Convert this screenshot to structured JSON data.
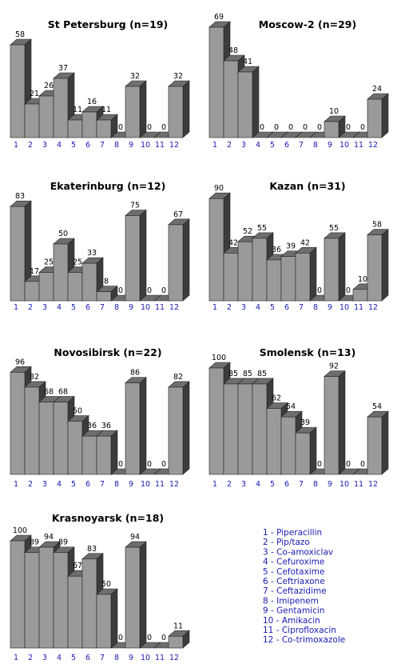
{
  "chart_data": [
    {
      "type": "bar",
      "title": "St Petersburg (n=19)",
      "categories": [
        "1",
        "2",
        "3",
        "4",
        "5",
        "6",
        "7",
        "8",
        "9",
        "10",
        "11",
        "12"
      ],
      "values": [
        58,
        21,
        26,
        37,
        11,
        16,
        11,
        0,
        32,
        0,
        0,
        32
      ]
    },
    {
      "type": "bar",
      "title": "Moscow-2 (n=29)",
      "categories": [
        "1",
        "2",
        "3",
        "4",
        "5",
        "6",
        "7",
        "8",
        "9",
        "10",
        "11",
        "12"
      ],
      "values": [
        69,
        48,
        41,
        0,
        0,
        0,
        0,
        0,
        10,
        0,
        0,
        24
      ]
    },
    {
      "type": "bar",
      "title": "Ekaterinburg (n=12)",
      "categories": [
        "1",
        "2",
        "3",
        "4",
        "5",
        "6",
        "7",
        "8",
        "9",
        "10",
        "11",
        "12"
      ],
      "values": [
        83,
        17,
        25,
        50,
        25,
        33,
        8,
        0,
        75,
        0,
        0,
        67
      ]
    },
    {
      "type": "bar",
      "title": "Kazan (n=31)",
      "categories": [
        "1",
        "2",
        "3",
        "4",
        "5",
        "6",
        "7",
        "8",
        "9",
        "10",
        "11",
        "12"
      ],
      "values": [
        90,
        42,
        52,
        55,
        36,
        39,
        42,
        0,
        55,
        0,
        10,
        58
      ]
    },
    {
      "type": "bar",
      "title": "Novosibirsk (n=22)",
      "categories": [
        "1",
        "2",
        "3",
        "4",
        "5",
        "6",
        "7",
        "8",
        "9",
        "10",
        "11",
        "12"
      ],
      "values": [
        96,
        82,
        68,
        68,
        50,
        36,
        36,
        0,
        86,
        0,
        0,
        82
      ]
    },
    {
      "type": "bar",
      "title": "Smolensk (n=13)",
      "categories": [
        "1",
        "2",
        "3",
        "4",
        "5",
        "6",
        "7",
        "8",
        "9",
        "10",
        "11",
        "12"
      ],
      "values": [
        100,
        85,
        85,
        85,
        62,
        54,
        39,
        0,
        92,
        0,
        0,
        54
      ]
    },
    {
      "type": "bar",
      "title": "Krasnoyarsk (n=18)",
      "categories": [
        "1",
        "2",
        "3",
        "4",
        "5",
        "6",
        "7",
        "8",
        "9",
        "10",
        "11",
        "12"
      ],
      "values": [
        100,
        89,
        94,
        89,
        67,
        83,
        50,
        0,
        94,
        0,
        0,
        11
      ]
    }
  ],
  "legend": [
    "1 - Piperacillin",
    "2 - Pip/tazo",
    "3 - Co-amoxiclav",
    "4 - Cefuroxime",
    "5 - Cefotaxime",
    "6 - Ceftriaxone",
    "7 - Ceftazidime",
    "8 - Imipenem",
    "9 - Gentamicin",
    "10 - Amikacin",
    "11 - Ciprofloxacin",
    "12 - Co-trimoxazole"
  ],
  "colors": {
    "bar_front": "#9a9a9a",
    "bar_side": "#3c3c3c",
    "bar_top": "#6e6e6e",
    "tick": "#1a1ab3"
  }
}
